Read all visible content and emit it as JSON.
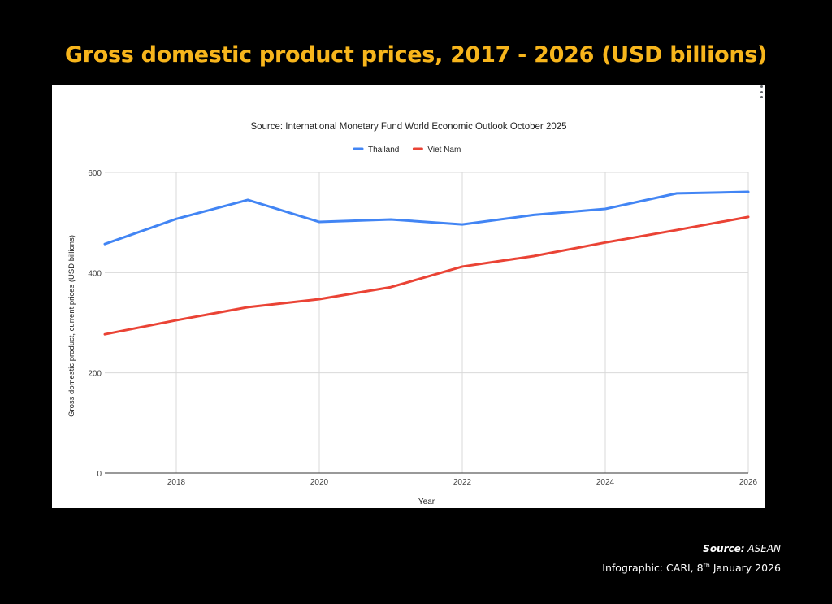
{
  "page": {
    "title": "Gross domestic product prices, 2017 - 2026 (USD billions)",
    "footer": {
      "source_label": "Source:",
      "source_value": "ASEAN",
      "credit_prefix": "Infographic: CARI, 8",
      "credit_sup": "th",
      "credit_suffix": " January 2026"
    },
    "menu_icon": "more-vertical-icon"
  },
  "chart_data": {
    "type": "line",
    "title": "Source: International Monetary Fund World Economic Outlook October 2025",
    "xlabel": "Year",
    "ylabel": "Gross domestic product, current prices (USD billions)",
    "x": [
      2017,
      2018,
      2019,
      2020,
      2021,
      2022,
      2023,
      2024,
      2025,
      2026
    ],
    "xlim": [
      2017,
      2026
    ],
    "ylim": [
      0,
      600
    ],
    "x_ticks": [
      "2018",
      "2020",
      "2022",
      "2024",
      "2026"
    ],
    "x_tick_values": [
      2018,
      2020,
      2022,
      2024,
      2026
    ],
    "y_ticks": [
      "0",
      "200",
      "400",
      "600"
    ],
    "y_tick_values": [
      0,
      200,
      400,
      600
    ],
    "grid": true,
    "legend_position": "top",
    "series": [
      {
        "name": "Thailand",
        "color": "#4285f4",
        "values": [
          457,
          507,
          545,
          501,
          506,
          496,
          515,
          527,
          558,
          561
        ]
      },
      {
        "name": "Viet Nam",
        "color": "#ea4335",
        "values": [
          277,
          305,
          331,
          347,
          371,
          412,
          433,
          460,
          485,
          511
        ]
      }
    ]
  }
}
